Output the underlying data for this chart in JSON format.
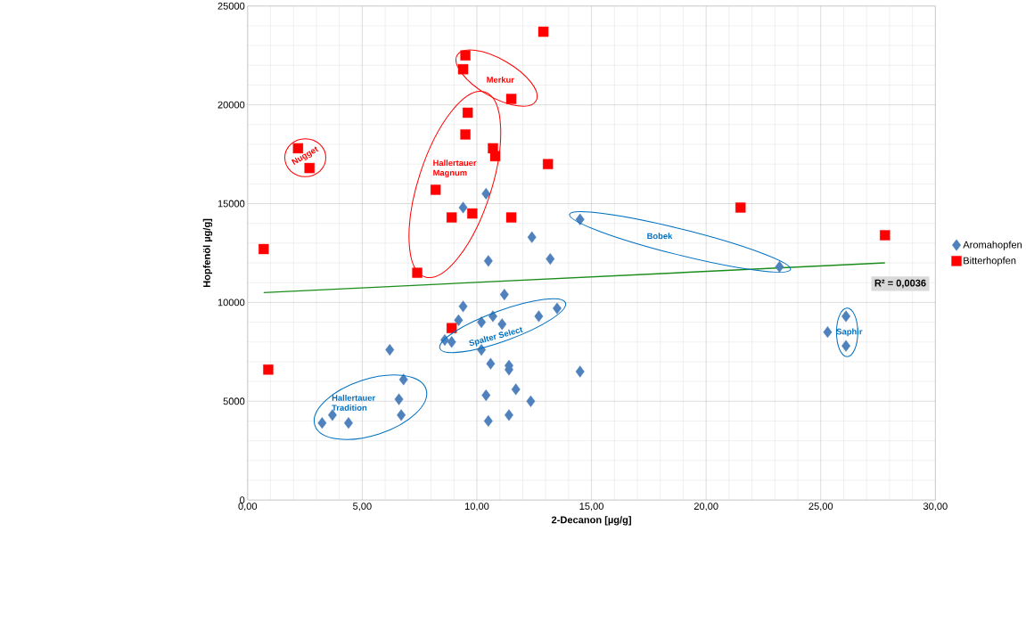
{
  "chart_data": {
    "type": "scatter",
    "xlabel": "2-Decanon [µg/g]",
    "ylabel": "Hopfenöl µg/g]",
    "xlim": [
      0,
      30
    ],
    "ylim": [
      0,
      25000
    ],
    "xticks": [
      {
        "value": 0,
        "label": "0,00"
      },
      {
        "value": 5,
        "label": "5,00"
      },
      {
        "value": 10,
        "label": "10,00"
      },
      {
        "value": 15,
        "label": "15,00"
      },
      {
        "value": 20,
        "label": "20,00"
      },
      {
        "value": 25,
        "label": "25,00"
      },
      {
        "value": 30,
        "label": "30,00"
      }
    ],
    "yticks": [
      0,
      5000,
      10000,
      15000,
      20000,
      25000
    ],
    "grid": true,
    "legend": "right",
    "series": [
      {
        "name": "Aromahopfen",
        "color": "#4f81bd",
        "marker": "diamond",
        "x": [
          3.7,
          3.25,
          4.4,
          6.2,
          6.6,
          6.7,
          6.8,
          9.2,
          9.4,
          9.4,
          10.4,
          10.5,
          12.4,
          13.2,
          11.2,
          10.2,
          10.6,
          11.4,
          11.4,
          11.7,
          10.4,
          12.35,
          10.5,
          11.4,
          14.5,
          11.1,
          12.7,
          8.6,
          8.9,
          10.2,
          10.7,
          13.5,
          14.5,
          23.2,
          25.3,
          26.1,
          26.1
        ],
        "values": [
          4300,
          3900,
          3900,
          7600,
          5100,
          4300,
          6100,
          9100,
          9800,
          14800,
          15500,
          12100,
          13300,
          12200,
          10400,
          7600,
          6900,
          6800,
          6600,
          5600,
          5300,
          5000,
          4000,
          4300,
          6500,
          8900,
          9300,
          8100,
          8000,
          9000,
          9300,
          9700,
          14200,
          11800,
          8500,
          9300,
          7800
        ]
      },
      {
        "name": "Bitterhopfen",
        "color": "#ff0000",
        "marker": "square",
        "x": [
          0.7,
          0.9,
          2.2,
          2.7,
          7.4,
          8.2,
          8.9,
          8.9,
          9.5,
          9.6,
          9.4,
          9.5,
          9.8,
          10.7,
          10.8,
          11.5,
          11.5,
          12.9,
          13.1,
          21.5,
          27.8
        ],
        "values": [
          12700,
          6600,
          17800,
          16800,
          11500,
          15700,
          14300,
          8700,
          18500,
          19600,
          21800,
          22500,
          14500,
          17800,
          17400,
          20300,
          14300,
          23700,
          17000,
          14800,
          13400
        ]
      },
      {
        "type": "line",
        "color": "#1a8c1a",
        "marker": "none",
        "x": [
          0.7,
          27.8
        ],
        "values": [
          10500,
          12000
        ]
      }
    ],
    "annotations": [
      "Merkur",
      "Hallertauer Magnum",
      "Nugget",
      "Bobek",
      "Spalter Select",
      "Hallertauer Tradition",
      "Saphir",
      "R² = 0,0036"
    ]
  }
}
